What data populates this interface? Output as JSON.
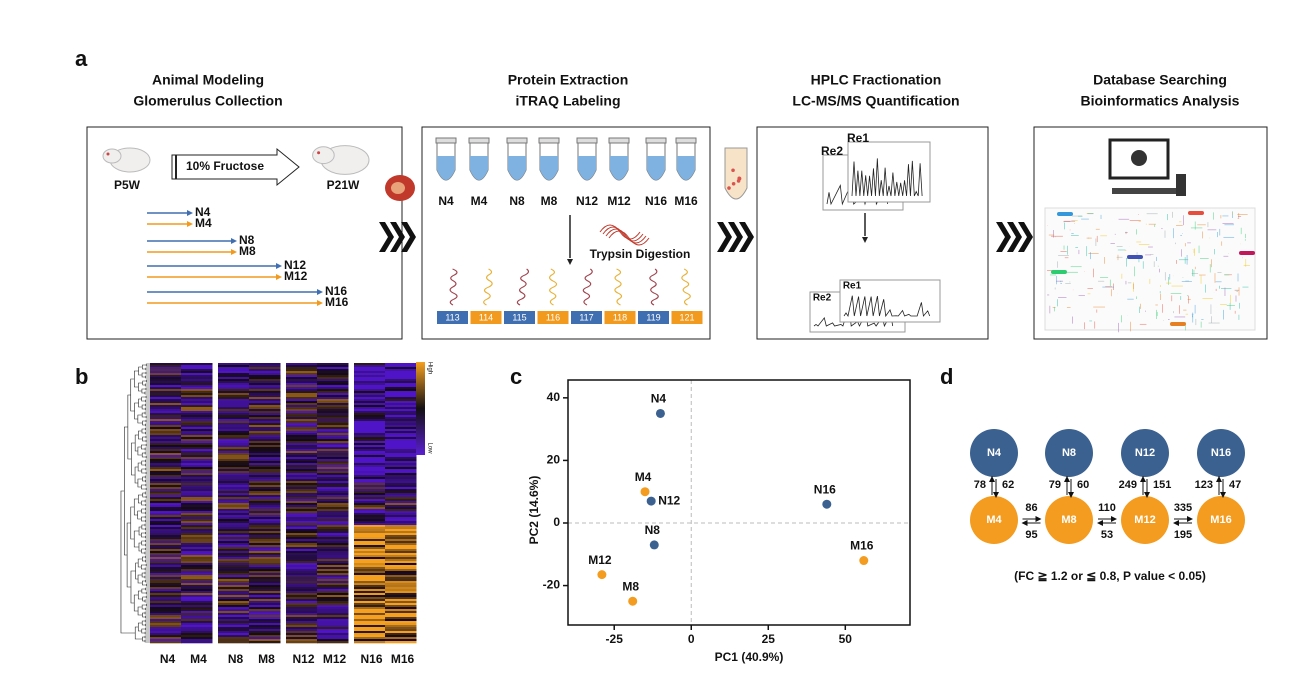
{
  "panel_a": {
    "label": "a",
    "steps": [
      {
        "title": [
          "Animal Modeling",
          "Glomerulus Collection"
        ]
      },
      {
        "title": [
          "Protein Extraction",
          "iTRAQ Labeling"
        ]
      },
      {
        "title": [
          "HPLC Fractionation",
          "LC-MS/MS Quantification"
        ]
      },
      {
        "title": [
          "Database Searching",
          "Bioinformatics Analysis"
        ]
      }
    ],
    "modeling": {
      "start": "P5W",
      "treatment": "10% Fructose",
      "end": "P21W",
      "groups": [
        "N4",
        "M4",
        "N8",
        "M8",
        "N12",
        "M12",
        "N16",
        "M16"
      ]
    },
    "extraction": {
      "tubes": [
        "N4",
        "M4",
        "N8",
        "M8",
        "N12",
        "M12",
        "N16",
        "M16"
      ],
      "digestion": "Trypsin Digestion",
      "tags": [
        "113",
        "114",
        "115",
        "116",
        "117",
        "118",
        "119",
        "121"
      ]
    },
    "fractionation": {
      "top": [
        "Re2",
        "Re1"
      ],
      "bottom": [
        "Re2",
        "Re1"
      ]
    }
  },
  "panel_b": {
    "label": "b",
    "columns": [
      "N4",
      "M4",
      "N8",
      "M8",
      "N12",
      "M12",
      "N16",
      "M16"
    ],
    "legend": [
      "High",
      "Low"
    ]
  },
  "chart_data": {
    "type": "scatter",
    "panel_label": "c",
    "x_label": "PC1 (40.9%)",
    "y_label": "PC2 (14.6%)",
    "point_labels": [
      "N4",
      "M4",
      "N12",
      "N8",
      "M12",
      "M8",
      "N16",
      "M16"
    ],
    "x": [
      -10,
      -15,
      -13,
      -12,
      -29,
      -19,
      44,
      56
    ],
    "values": [
      35,
      10,
      7,
      -7,
      -16.5,
      -25,
      6,
      -12
    ],
    "colors": [
      "#3b6190",
      "#f39c1f",
      "#3b6190",
      "#3b6190",
      "#f39c1f",
      "#f39c1f",
      "#3b6190",
      "#f39c1f"
    ],
    "xlim": [
      -40,
      71
    ],
    "ylim": [
      -32.6,
      45.7
    ],
    "xticks": [
      -25,
      0,
      25,
      50
    ],
    "yticks": [
      -20,
      0,
      20,
      40
    ],
    "zero_lines": true
  },
  "panel_d": {
    "label": "d",
    "top": [
      "N4",
      "N8",
      "N12",
      "N16"
    ],
    "bottom": [
      "M4",
      "M8",
      "M12",
      "M16"
    ],
    "vertical": [
      [
        78,
        62
      ],
      [
        79,
        60
      ],
      [
        249,
        151
      ],
      [
        123,
        47
      ]
    ],
    "horizontal": [
      [
        86,
        95
      ],
      [
        110,
        53
      ],
      [
        335,
        195
      ]
    ],
    "top_color": "#3b6190",
    "bottom_color": "#f39c1f",
    "note": "(FC ≧ 1.2 or ≦ 0.8, P value < 0.05)"
  }
}
